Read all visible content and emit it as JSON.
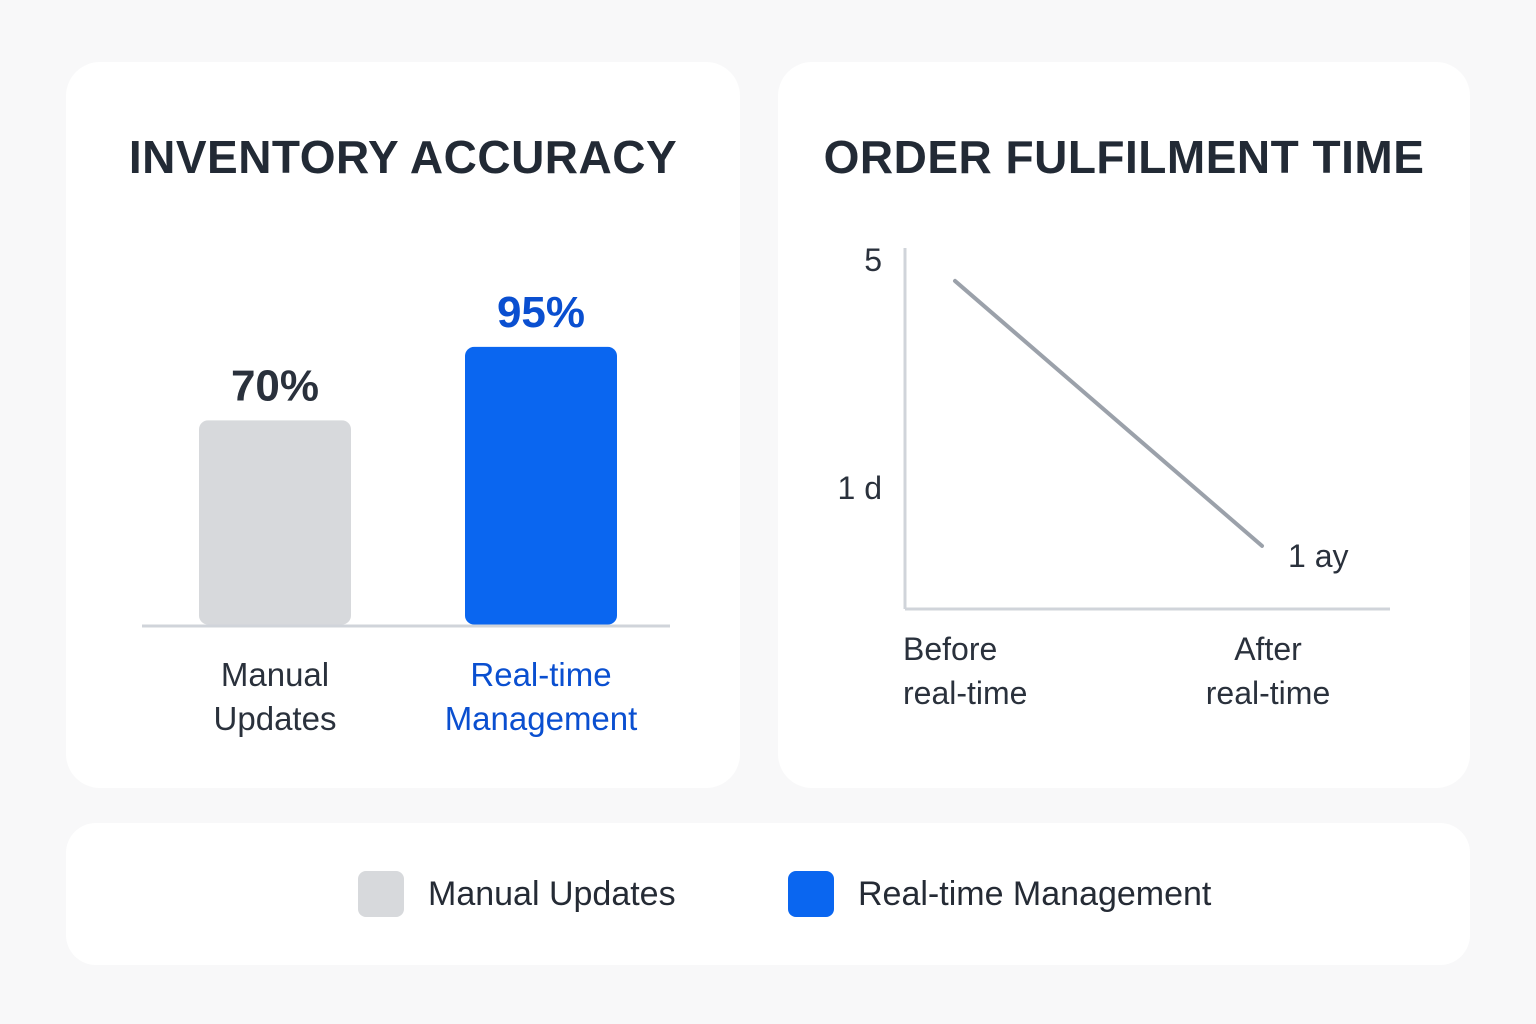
{
  "colors": {
    "manual": "#d7d9dc",
    "realtime": "#0a66f0",
    "realtime_text": "#0a4fd0",
    "dark_text": "#2a313c",
    "axis": "#d0d4da",
    "line": "#9ba1aa"
  },
  "chart_data": [
    {
      "type": "bar",
      "title": "INVENTORY ACCURACY",
      "categories": [
        "Manual\nUpdates",
        "Real-time\nManagement"
      ],
      "values": [
        70,
        95
      ],
      "value_labels": [
        "70%",
        "95%"
      ],
      "ylim": [
        0,
        100
      ],
      "grid": false
    },
    {
      "type": "line",
      "title": "ORDER FULFILMENT TIME",
      "x": [
        "Before\nreal-time",
        "After\nreal-time"
      ],
      "series": [
        {
          "values": [
            4.7,
            0.5
          ]
        }
      ],
      "y_tick_labels": [
        "5",
        "1 d"
      ],
      "y_tick_values": [
        5,
        1
      ],
      "point_annotation": "1 ay",
      "ylim": [
        -0.5,
        5
      ],
      "grid": false
    }
  ],
  "legend": {
    "items": [
      {
        "label": "Manual Updates",
        "color": "#d7d9dc"
      },
      {
        "label": "Real-time Management",
        "color": "#0a66f0"
      }
    ]
  }
}
